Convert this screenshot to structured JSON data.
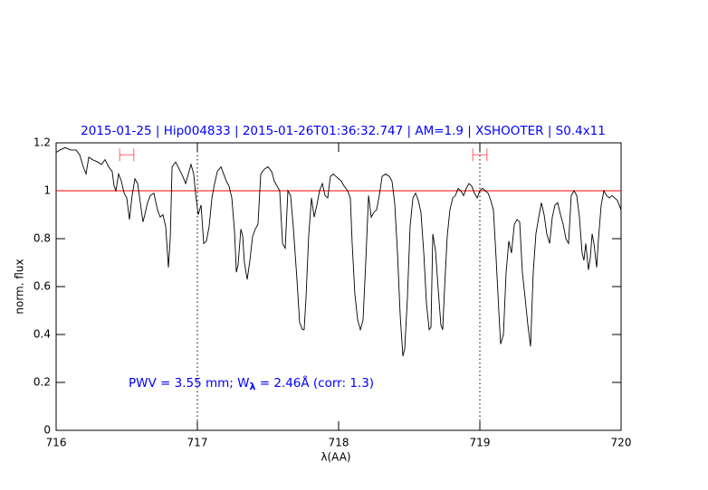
{
  "chart_data": {
    "type": "line",
    "title": "2015-01-25 | Hip004833 | 2015-01-26T01:36:32.747 | AM=1.9 | XSHOOTER | S0.4x11",
    "x_label": "λ(AA)",
    "y_label": "norm. flux",
    "annotation": {
      "prefix": "PWV = 3.55 mm; W",
      "subscript": "λ",
      "suffix": " = 2.46Å (corr: 1.3)"
    },
    "xlim": [
      716,
      720
    ],
    "ylim": [
      0,
      1.2
    ],
    "xticks": [
      716,
      717,
      718,
      719,
      720
    ],
    "yticks": [
      0,
      0.2,
      0.4,
      0.6,
      0.8,
      1,
      1.2
    ],
    "reference_line": {
      "y": 1,
      "color": "#ff0000"
    },
    "dotted_lines": [
      717,
      719
    ],
    "range_markers": [
      {
        "x": [
          716.45,
          716.55
        ],
        "y": 1.15
      },
      {
        "x": [
          718.95,
          719.05
        ],
        "y": 1.15
      }
    ],
    "range_color": "#ff6060",
    "series": [
      {
        "color": "#000000",
        "x": [
          716.0,
          716.026,
          716.064,
          716.103,
          716.141,
          716.167,
          716.192,
          716.212,
          716.231,
          716.256,
          716.295,
          716.321,
          716.346,
          716.372,
          716.397,
          716.41,
          716.423,
          716.442,
          716.462,
          716.481,
          716.5,
          716.519,
          716.538,
          716.558,
          716.577,
          716.596,
          716.615,
          716.628,
          716.647,
          716.667,
          716.692,
          716.718,
          716.737,
          716.756,
          716.776,
          716.795,
          716.808,
          716.821,
          716.846,
          716.872,
          716.897,
          716.917,
          716.936,
          716.955,
          716.974,
          716.987,
          717.006,
          717.026,
          717.045,
          717.064,
          717.083,
          717.103,
          717.122,
          717.141,
          717.167,
          717.186,
          717.205,
          717.224,
          717.244,
          717.263,
          717.276,
          717.288,
          717.308,
          717.321,
          717.333,
          717.353,
          717.372,
          717.391,
          717.41,
          717.429,
          717.449,
          717.474,
          717.5,
          717.526,
          717.545,
          717.564,
          717.583,
          717.603,
          717.622,
          717.641,
          717.66,
          717.679,
          717.705,
          717.724,
          717.744,
          717.756,
          717.769,
          717.788,
          717.808,
          717.827,
          717.846,
          717.865,
          717.885,
          717.904,
          717.923,
          717.942,
          717.962,
          717.981,
          718.0,
          718.019,
          718.038,
          718.064,
          718.083,
          718.096,
          718.115,
          718.135,
          718.154,
          718.173,
          718.192,
          718.212,
          718.231,
          718.25,
          718.269,
          718.288,
          718.308,
          718.333,
          718.359,
          718.378,
          718.397,
          718.417,
          718.436,
          718.455,
          718.468,
          718.487,
          718.506,
          718.526,
          718.545,
          718.564,
          718.583,
          718.603,
          718.622,
          718.641,
          718.654,
          718.667,
          718.686,
          718.705,
          718.724,
          718.737,
          718.75,
          718.769,
          718.788,
          718.808,
          718.827,
          718.846,
          718.865,
          718.885,
          718.904,
          718.923,
          718.942,
          718.962,
          718.981,
          719.0,
          719.019,
          719.038,
          719.058,
          719.077,
          719.096,
          719.115,
          719.135,
          719.147,
          719.167,
          719.186,
          719.205,
          719.224,
          719.244,
          719.263,
          719.282,
          719.301,
          719.321,
          719.34,
          719.359,
          719.378,
          719.397,
          719.417,
          719.436,
          719.455,
          719.474,
          719.494,
          719.513,
          719.532,
          719.551,
          719.571,
          719.59,
          719.609,
          719.628,
          719.647,
          719.667,
          719.686,
          719.705,
          719.724,
          719.737,
          719.75,
          719.769,
          719.782,
          719.795,
          719.808,
          719.827,
          719.84,
          719.859,
          719.878,
          719.897,
          719.917,
          719.936,
          719.955,
          719.974,
          720.0
        ],
        "values": [
          1.16,
          1.17,
          1.18,
          1.17,
          1.17,
          1.15,
          1.1,
          1.07,
          1.14,
          1.13,
          1.12,
          1.11,
          1.13,
          1.1,
          1.08,
          1.02,
          1.0,
          1.07,
          1.04,
          0.99,
          0.97,
          0.88,
          0.98,
          1.05,
          1.03,
          0.95,
          0.87,
          0.9,
          0.95,
          0.98,
          0.99,
          0.92,
          0.89,
          0.9,
          0.85,
          0.68,
          0.8,
          1.1,
          1.12,
          1.09,
          1.06,
          1.03,
          1.07,
          1.11,
          1.07,
          0.99,
          0.9,
          0.94,
          0.78,
          0.79,
          0.85,
          0.97,
          1.03,
          1.08,
          1.1,
          1.07,
          1.04,
          1.02,
          0.97,
          0.83,
          0.66,
          0.69,
          0.84,
          0.81,
          0.7,
          0.63,
          0.71,
          0.81,
          0.84,
          0.86,
          1.07,
          1.09,
          1.1,
          1.08,
          1.04,
          1.02,
          1.0,
          0.78,
          0.76,
          1.0,
          0.98,
          0.85,
          0.63,
          0.45,
          0.42,
          0.42,
          0.55,
          0.81,
          0.97,
          0.89,
          0.94,
          1.0,
          1.03,
          0.98,
          0.97,
          1.06,
          1.07,
          1.06,
          1.05,
          1.04,
          1.02,
          1.0,
          0.97,
          0.78,
          0.57,
          0.46,
          0.42,
          0.46,
          0.7,
          0.98,
          0.89,
          0.91,
          0.92,
          0.98,
          1.06,
          1.07,
          1.06,
          1.04,
          0.95,
          0.74,
          0.48,
          0.31,
          0.34,
          0.55,
          0.85,
          0.97,
          0.99,
          0.96,
          0.91,
          0.74,
          0.53,
          0.42,
          0.43,
          0.82,
          0.75,
          0.59,
          0.44,
          0.42,
          0.59,
          0.81,
          0.92,
          0.97,
          0.98,
          1.01,
          1.0,
          0.98,
          1.01,
          1.03,
          1.02,
          0.99,
          0.97,
          1.0,
          1.01,
          1.0,
          0.99,
          0.96,
          0.92,
          0.72,
          0.49,
          0.36,
          0.4,
          0.66,
          0.79,
          0.74,
          0.86,
          0.88,
          0.87,
          0.66,
          0.55,
          0.44,
          0.35,
          0.66,
          0.82,
          0.89,
          0.95,
          0.9,
          0.82,
          0.78,
          0.89,
          0.94,
          0.95,
          0.9,
          0.86,
          0.8,
          0.78,
          0.98,
          1.0,
          0.98,
          0.89,
          0.74,
          0.71,
          0.78,
          0.67,
          0.72,
          0.82,
          0.78,
          0.68,
          0.8,
          0.94,
          1.0,
          0.98,
          0.97,
          0.98,
          0.97,
          0.96,
          0.92
        ]
      }
    ]
  }
}
